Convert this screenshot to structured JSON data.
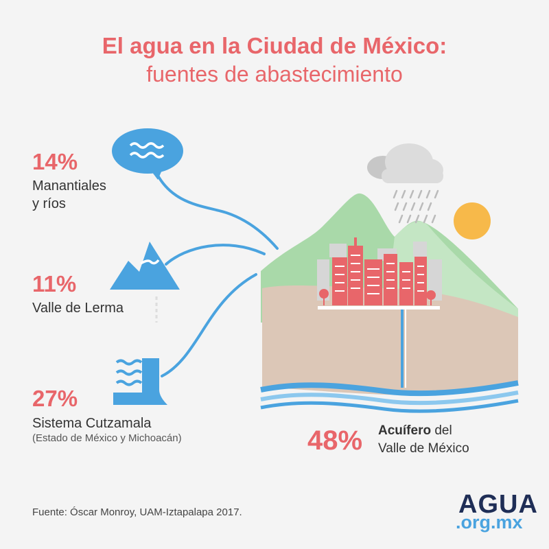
{
  "header": {
    "title": "El agua en la Ciudad de México:",
    "subtitle": "fuentes de abastecimiento"
  },
  "sources": [
    {
      "percent": "14%",
      "label_line1": "Manantiales",
      "label_line2": "y ríos",
      "icon": "water-bubble-icon"
    },
    {
      "percent": "11%",
      "label_line1": "Valle de Lerma",
      "icon": "mountain-icon"
    },
    {
      "percent": "27%",
      "label_line1": "Sistema Cutzamala",
      "note": "(Estado de México y Michoacán)",
      "icon": "dam-icon"
    }
  ],
  "aquifer": {
    "percent": "48%",
    "label_bold": "Acuífero",
    "label_rest": " del",
    "label_line2": "Valle de México"
  },
  "footer": {
    "source": "Fuente: Óscar Monroy, UAM-Iztapalapa 2017.",
    "logo_line1": "AGUA",
    "logo_line2": ".org.mx"
  },
  "colors": {
    "accent": "#e8666a",
    "water": "#4aa3df",
    "ground": "#dcc7b7",
    "mountain": "#9fd3a0",
    "city": "#e8666a",
    "sun": "#f7b94a"
  }
}
